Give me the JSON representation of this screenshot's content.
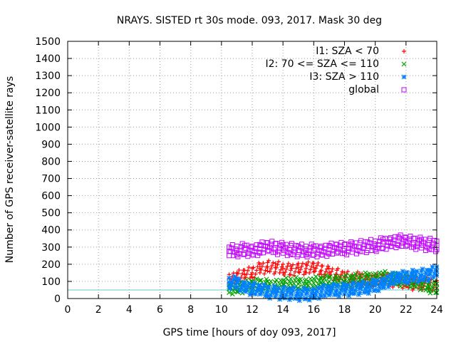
{
  "chart_data": {
    "type": "scatter",
    "title": "NRAYS. SISTED rt 30s mode. 093, 2017. Mask 30 deg",
    "xlabel": "GPS time [hours of doy 093, 2017]",
    "ylabel": "Number of GPS receiver-satellite rays",
    "xlim": [
      0,
      24
    ],
    "ylim": [
      0,
      1500
    ],
    "xticks": [
      "0",
      "2",
      "4",
      "6",
      "8",
      "10",
      "12",
      "14",
      "16",
      "18",
      "20",
      "22",
      "24"
    ],
    "yticks": [
      "0",
      "100",
      "200",
      "300",
      "400",
      "500",
      "600",
      "700",
      "800",
      "900",
      "1000",
      "1100",
      "1200",
      "1300",
      "1400",
      "1500"
    ],
    "grid": true,
    "legend_position": "top-right",
    "threshold_line": {
      "y": 50,
      "x_range": [
        0,
        24
      ],
      "color": "#66cccc"
    },
    "series": [
      {
        "name": "I1: SZA < 70",
        "marker": "+",
        "color": "#ff0000",
        "x": [
          10.5,
          11,
          11.5,
          12,
          12.5,
          13,
          13.5,
          14,
          14.5,
          15,
          15.5,
          16,
          16.5,
          17,
          17.5,
          18,
          18.5,
          19,
          19.5,
          20,
          20.5,
          21,
          21.5,
          22,
          22.5,
          23,
          23.5,
          24
        ],
        "values": [
          115,
          125,
          140,
          150,
          175,
          185,
          180,
          175,
          165,
          180,
          175,
          180,
          165,
          150,
          140,
          125,
          115,
          120,
          110,
          105,
          110,
          105,
          100,
          95,
          85,
          90,
          85,
          80
        ]
      },
      {
        "name": "I2: 70 <= SZA <= 110",
        "marker": "x",
        "color": "#00a000",
        "x": [
          10.5,
          11,
          11.5,
          12,
          12.5,
          13,
          13.5,
          14,
          14.5,
          15,
          15.5,
          16,
          16.5,
          17,
          17.5,
          18,
          18.5,
          19,
          19.5,
          20,
          20.5,
          21,
          21.5,
          22,
          22.5,
          23,
          23.5,
          24
        ],
        "values": [
          60,
          65,
          70,
          75,
          80,
          75,
          70,
          80,
          90,
          85,
          85,
          90,
          95,
          100,
          95,
          100,
          105,
          110,
          115,
          120,
          125,
          115,
          110,
          105,
          100,
          85,
          70,
          60
        ]
      },
      {
        "name": "I3: SZA > 110",
        "marker": "*",
        "color": "#0080ff",
        "x": [
          10.5,
          11,
          11.5,
          12,
          12.5,
          13,
          13.5,
          14,
          14.5,
          15,
          15.5,
          16,
          16.5,
          17,
          17.5,
          18,
          18.5,
          19,
          19.5,
          20,
          20.5,
          21,
          21.5,
          22,
          22.5,
          23,
          23.5,
          24
        ],
        "values": [
          95,
          90,
          70,
          55,
          50,
          40,
          35,
          30,
          30,
          25,
          25,
          30,
          40,
          45,
          50,
          50,
          55,
          60,
          65,
          75,
          90,
          110,
          120,
          125,
          130,
          135,
          140,
          160
        ]
      },
      {
        "name": "global",
        "marker": "square",
        "color": "#c000ff",
        "x": [
          10.5,
          11,
          11.5,
          12,
          12.5,
          13,
          13.5,
          14,
          14.5,
          15,
          15.5,
          16,
          16.5,
          17,
          17.5,
          18,
          18.5,
          19,
          19.5,
          20,
          20.5,
          21,
          21.5,
          22,
          22.5,
          23,
          23.5,
          24
        ],
        "values": [
          275,
          280,
          285,
          280,
          290,
          300,
          295,
          290,
          285,
          280,
          280,
          280,
          280,
          285,
          290,
          290,
          295,
          300,
          305,
          310,
          320,
          330,
          335,
          330,
          325,
          320,
          315,
          310
        ]
      }
    ]
  }
}
